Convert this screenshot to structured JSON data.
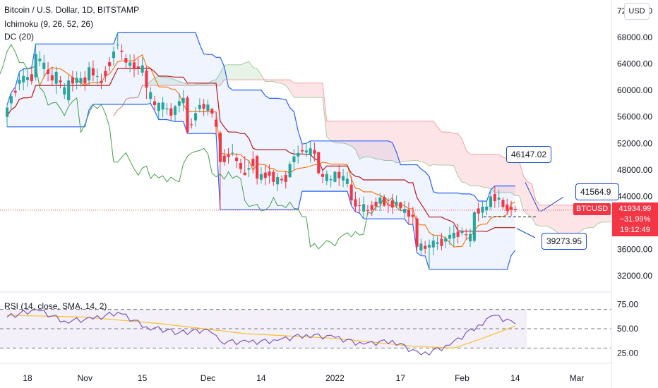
{
  "legend": {
    "title": "Bitcoin / U.S. Dollar, 1D, BITSTAMP",
    "ichimoku": "Ichimoku (9, 26, 52, 26)",
    "dc": "DC (20)",
    "rsi": "RSI (14, close, SMA, 14, 2)"
  },
  "currency_button": "USD",
  "price_axis": [
    "72000.00",
    "68000.00",
    "64000.00",
    "60000.00",
    "56000.00",
    "52000.00",
    "48000.00",
    "44000.00",
    "40000.00",
    "36000.00",
    "32000.00"
  ],
  "rsi_axis": [
    "75.00",
    "50.00",
    "25.00"
  ],
  "time_axis": [
    "18",
    "Nov",
    "15",
    "Dec",
    "14",
    "2022",
    "17",
    "Feb",
    "14",
    "Mar"
  ],
  "callouts": {
    "upper": "46147.02",
    "lower": "39273.95",
    "right": "41564.9"
  },
  "symbol_badge": "BTCUSD",
  "last_price": {
    "price": "41934.99",
    "change": "−31.99%",
    "countdown": "19:12:49"
  },
  "colors": {
    "up": "#26a69a",
    "down": "#f23645",
    "donchian": "#2962ff",
    "tenkan": "#2962ff",
    "kijun": "#b71c1c",
    "chikou": "#43a047",
    "lagging_orange": "#ff6d00",
    "rsi_line": "#7e57c2",
    "rsi_ma": "#fbc02d"
  },
  "chart_data": {
    "type": "candlestick",
    "symbol": "BTCUSD",
    "interval": "1D",
    "ylim": [
      30000,
      73000
    ],
    "x_range": [
      "2021-10-13",
      "2022-03-06"
    ],
    "candles": [
      {
        "d": "2021-10-13",
        "o": 56000,
        "h": 57800,
        "l": 54500,
        "c": 57400
      },
      {
        "d": "2021-10-16",
        "o": 61000,
        "h": 62800,
        "l": 60000,
        "c": 61600
      },
      {
        "d": "2021-10-20",
        "o": 62000,
        "h": 67000,
        "l": 61500,
        "c": 65500
      },
      {
        "d": "2021-10-25",
        "o": 61000,
        "h": 63600,
        "l": 59500,
        "c": 62800
      },
      {
        "d": "2021-10-28",
        "o": 58500,
        "h": 62300,
        "l": 57900,
        "c": 61500
      },
      {
        "d": "2021-11-02",
        "o": 61500,
        "h": 64300,
        "l": 60800,
        "c": 63500
      },
      {
        "d": "2021-11-05",
        "o": 61400,
        "h": 62500,
        "l": 60200,
        "c": 61100
      },
      {
        "d": "2021-11-09",
        "o": 66800,
        "h": 68700,
        "l": 66200,
        "c": 66900
      },
      {
        "d": "2021-11-11",
        "o": 64900,
        "h": 65500,
        "l": 63200,
        "c": 64200
      },
      {
        "d": "2021-11-16",
        "o": 63000,
        "h": 63600,
        "l": 58700,
        "c": 60400
      },
      {
        "d": "2021-11-19",
        "o": 56900,
        "h": 58300,
        "l": 55600,
        "c": 58100
      },
      {
        "d": "2021-11-23",
        "o": 56300,
        "h": 57800,
        "l": 55300,
        "c": 57600
      },
      {
        "d": "2021-11-26",
        "o": 58900,
        "h": 59200,
        "l": 53500,
        "c": 53700
      },
      {
        "d": "2021-11-29",
        "o": 57200,
        "h": 58800,
        "l": 56700,
        "c": 57800
      },
      {
        "d": "2021-12-02",
        "o": 57200,
        "h": 57400,
        "l": 55900,
        "c": 56500
      },
      {
        "d": "2021-12-04",
        "o": 53600,
        "h": 53900,
        "l": 42000,
        "c": 49200
      },
      {
        "d": "2021-12-07",
        "o": 50600,
        "h": 51900,
        "l": 50100,
        "c": 50600
      },
      {
        "d": "2021-12-10",
        "o": 47600,
        "h": 50100,
        "l": 47300,
        "c": 47200
      },
      {
        "d": "2021-12-13",
        "o": 50100,
        "h": 50300,
        "l": 45800,
        "c": 46700
      },
      {
        "d": "2021-12-17",
        "o": 47700,
        "h": 48000,
        "l": 45600,
        "c": 46200
      },
      {
        "d": "2021-12-21",
        "o": 46900,
        "h": 49300,
        "l": 46800,
        "c": 48900
      },
      {
        "d": "2021-12-24",
        "o": 51000,
        "h": 51800,
        "l": 50500,
        "c": 50800
      },
      {
        "d": "2021-12-28",
        "o": 50700,
        "h": 50700,
        "l": 47300,
        "c": 47500
      },
      {
        "d": "2022-01-01",
        "o": 46200,
        "h": 47900,
        "l": 46100,
        "c": 47700
      },
      {
        "d": "2022-01-05",
        "o": 45800,
        "h": 47000,
        "l": 42600,
        "c": 43400
      },
      {
        "d": "2022-01-09",
        "o": 41900,
        "h": 42700,
        "l": 41200,
        "c": 41800
      },
      {
        "d": "2022-01-13",
        "o": 43900,
        "h": 44300,
        "l": 42400,
        "c": 42600
      },
      {
        "d": "2022-01-17",
        "o": 43100,
        "h": 43200,
        "l": 41800,
        "c": 42200
      },
      {
        "d": "2022-01-21",
        "o": 40700,
        "h": 41100,
        "l": 35500,
        "c": 36400
      },
      {
        "d": "2022-01-24",
        "o": 36300,
        "h": 37500,
        "l": 33000,
        "c": 36700
      },
      {
        "d": "2022-01-28",
        "o": 37200,
        "h": 38000,
        "l": 36200,
        "c": 37700
      },
      {
        "d": "2022-02-01",
        "o": 38500,
        "h": 39300,
        "l": 38100,
        "c": 38700
      },
      {
        "d": "2022-02-04",
        "o": 37300,
        "h": 41800,
        "l": 37000,
        "c": 41600
      },
      {
        "d": "2022-02-08",
        "o": 42400,
        "h": 45000,
        "l": 42000,
        "c": 44000
      },
      {
        "d": "2022-02-11",
        "o": 43500,
        "h": 43900,
        "l": 42000,
        "c": 42400
      },
      {
        "d": "2022-02-14",
        "o": 42100,
        "h": 42600,
        "l": 41600,
        "c": 41935
      }
    ],
    "last_price": 41934.99,
    "annotations": [
      {
        "label": "46147.02",
        "value": 46147.02
      },
      {
        "label": "39273.95",
        "value": 39273.95
      },
      {
        "label": "41564.9",
        "value": 41564.9
      }
    ],
    "rsi": {
      "ylim": [
        15,
        85
      ],
      "bands": [
        70,
        50,
        30
      ],
      "rsi_line": [
        [
          "2021-10-13",
          62
        ],
        [
          "2021-10-20",
          70
        ],
        [
          "2021-10-27",
          58
        ],
        [
          "2021-11-03",
          60
        ],
        [
          "2021-11-09",
          67
        ],
        [
          "2021-11-16",
          52
        ],
        [
          "2021-11-24",
          46
        ],
        [
          "2021-12-01",
          49
        ],
        [
          "2021-12-04",
          37
        ],
        [
          "2021-12-11",
          36
        ],
        [
          "2021-12-18",
          38
        ],
        [
          "2021-12-25",
          44
        ],
        [
          "2022-01-01",
          41
        ],
        [
          "2022-01-08",
          34
        ],
        [
          "2022-01-15",
          38
        ],
        [
          "2022-01-22",
          23
        ],
        [
          "2022-01-29",
          33
        ],
        [
          "2022-02-05",
          54
        ],
        [
          "2022-02-09",
          64
        ],
        [
          "2022-02-14",
          55
        ]
      ],
      "rsi_ma": [
        [
          "2021-10-13",
          64
        ],
        [
          "2021-11-01",
          62
        ],
        [
          "2021-11-20",
          55
        ],
        [
          "2021-12-10",
          45
        ],
        [
          "2022-01-01",
          40
        ],
        [
          "2022-01-20",
          32
        ],
        [
          "2022-01-30",
          30
        ],
        [
          "2022-02-06",
          40
        ],
        [
          "2022-02-14",
          53
        ]
      ]
    }
  }
}
